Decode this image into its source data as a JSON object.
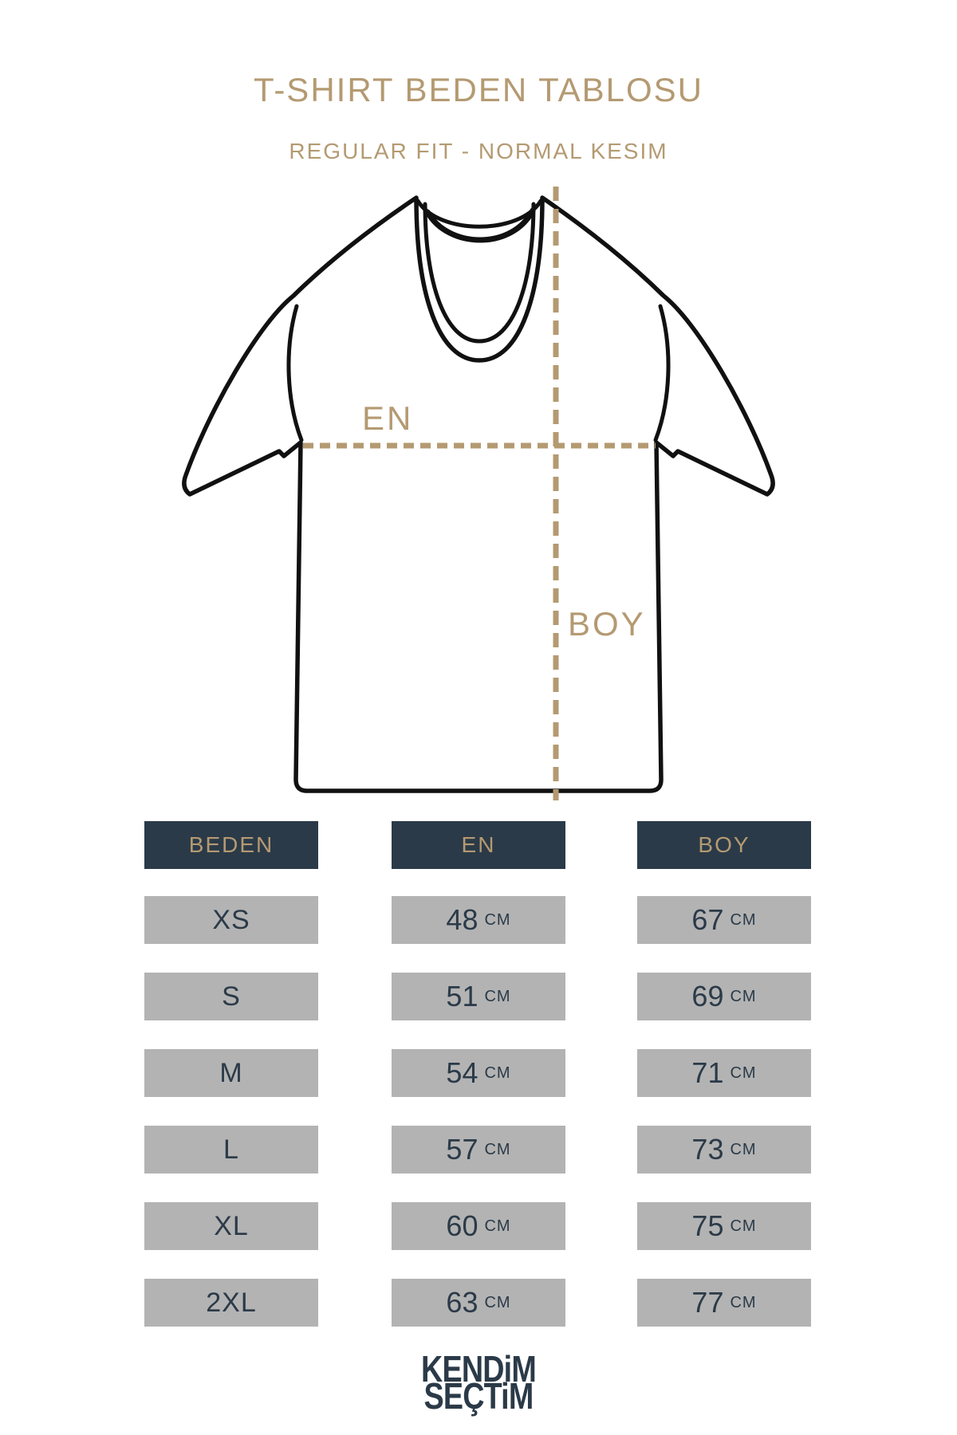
{
  "header": {
    "title": "T-SHIRT BEDEN TABLOSU",
    "subtitle": "REGULAR FIT - NORMAL KESIM"
  },
  "diagram": {
    "width_label": "EN",
    "length_label": "BOY"
  },
  "table": {
    "headers": [
      "BEDEN",
      "EN",
      "BOY"
    ],
    "unit": "CM",
    "rows": [
      {
        "size": "XS",
        "en": "48",
        "boy": "67"
      },
      {
        "size": "S",
        "en": "51",
        "boy": "69"
      },
      {
        "size": "M",
        "en": "54",
        "boy": "71"
      },
      {
        "size": "L",
        "en": "57",
        "boy": "73"
      },
      {
        "size": "XL",
        "en": "60",
        "boy": "75"
      },
      {
        "size": "2XL",
        "en": "63",
        "boy": "77"
      }
    ]
  },
  "footer": {
    "brand_line1": "KENDiM",
    "brand_line2": "SEÇTiM"
  },
  "colors": {
    "tan": "#b49a72",
    "navy": "#2b3a48",
    "gray": "#b3b3b3",
    "ink": "#111111",
    "background": "#ffffff"
  }
}
